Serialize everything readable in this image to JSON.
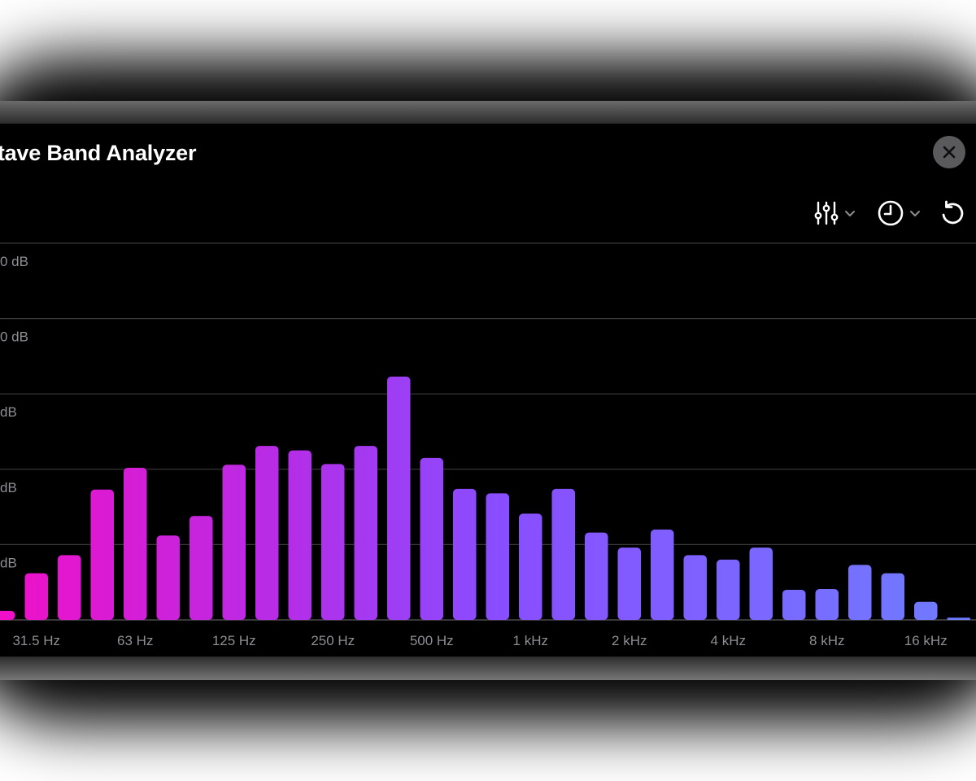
{
  "window": {
    "title": "ctave Band Analyzer"
  },
  "toolbar": {
    "close_icon": "xmark-icon",
    "filter_icon": "sliders-icon",
    "history_icon": "clock-icon",
    "reset_icon": "rotate-ccw-icon",
    "chevron_icon": "chevron-down-icon"
  },
  "colors": {
    "background": "#000000",
    "bar_low": "#f010c8",
    "bar_mid": "#8a4cff",
    "bar_high": "#6e7dff",
    "grid": "#3a3a3c",
    "label": "#8e8e93"
  },
  "chart_data": {
    "type": "bar",
    "x_scale": "log (1/3-octave bands)",
    "ytick_labels": [
      {
        "text": "0 dB",
        "level": 5
      },
      {
        "text": "0 dB",
        "level": 4
      },
      {
        "text": "dB",
        "level": 3
      },
      {
        "text": "dB",
        "level": 2
      },
      {
        "text": "dB",
        "level": 1
      }
    ],
    "xtick_labels": [
      {
        "text": "31.5 Hz",
        "band": 1
      },
      {
        "text": "63 Hz",
        "band": 4
      },
      {
        "text": "125 Hz",
        "band": 7
      },
      {
        "text": "250 Hz",
        "band": 10
      },
      {
        "text": "500 Hz",
        "band": 13
      },
      {
        "text": "1 kHz",
        "band": 16
      },
      {
        "text": "2 kHz",
        "band": 19
      },
      {
        "text": "4 kHz",
        "band": 22
      },
      {
        "text": "8 kHz",
        "band": 25
      },
      {
        "text": "16 kHz",
        "band": 28
      }
    ],
    "grid_levels": [
      0,
      1,
      2,
      3,
      4,
      5
    ],
    "levels": [
      0.12,
      0.62,
      0.86,
      1.73,
      2.02,
      1.12,
      1.38,
      2.06,
      2.31,
      2.25,
      2.07,
      2.31,
      3.23,
      2.15,
      1.74,
      1.68,
      1.41,
      1.74,
      1.16,
      0.96,
      1.2,
      0.86,
      0.8,
      0.96,
      0.4,
      0.41,
      0.73,
      0.62,
      0.24,
      0.03
    ],
    "grid": true
  }
}
